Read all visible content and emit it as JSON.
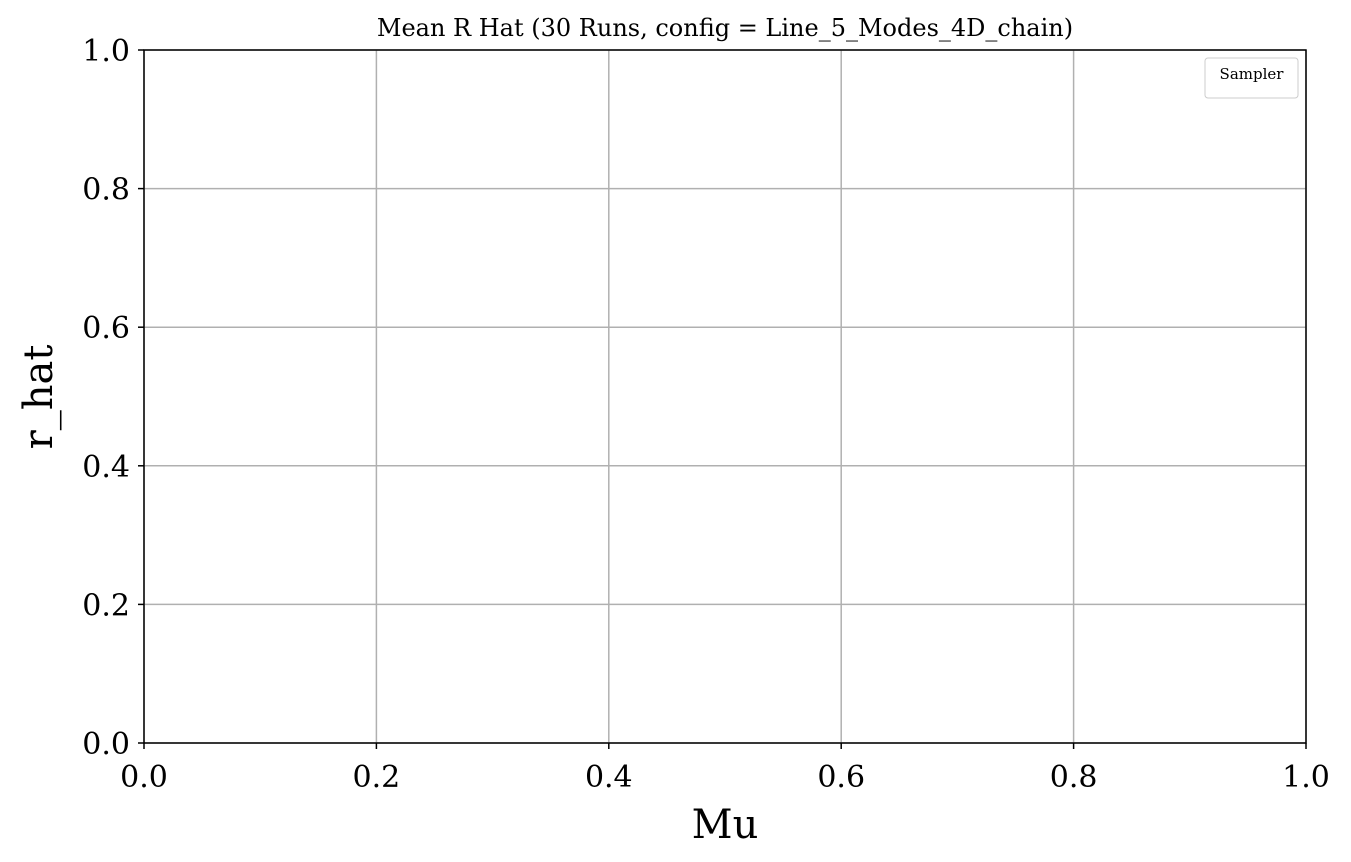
{
  "chart_data": {
    "type": "line",
    "title": "Mean R Hat (30 Runs, config = Line_5_Modes_4D_chain)",
    "xlabel": "Mu",
    "ylabel": "r_hat",
    "xlim": [
      0.0,
      1.0
    ],
    "ylim": [
      0.0,
      1.0
    ],
    "xticks": [
      "0.0",
      "0.2",
      "0.4",
      "0.6",
      "0.8",
      "1.0"
    ],
    "yticks": [
      "0.0",
      "0.2",
      "0.4",
      "0.6",
      "0.8",
      "1.0"
    ],
    "grid": true,
    "legend": {
      "title": "Sampler",
      "placement": "top-right",
      "entries": []
    },
    "series": []
  },
  "colors": {
    "axis": "#000000",
    "grid": "#b0b0b0",
    "legend_border": "#cccccc",
    "background": "#ffffff"
  }
}
